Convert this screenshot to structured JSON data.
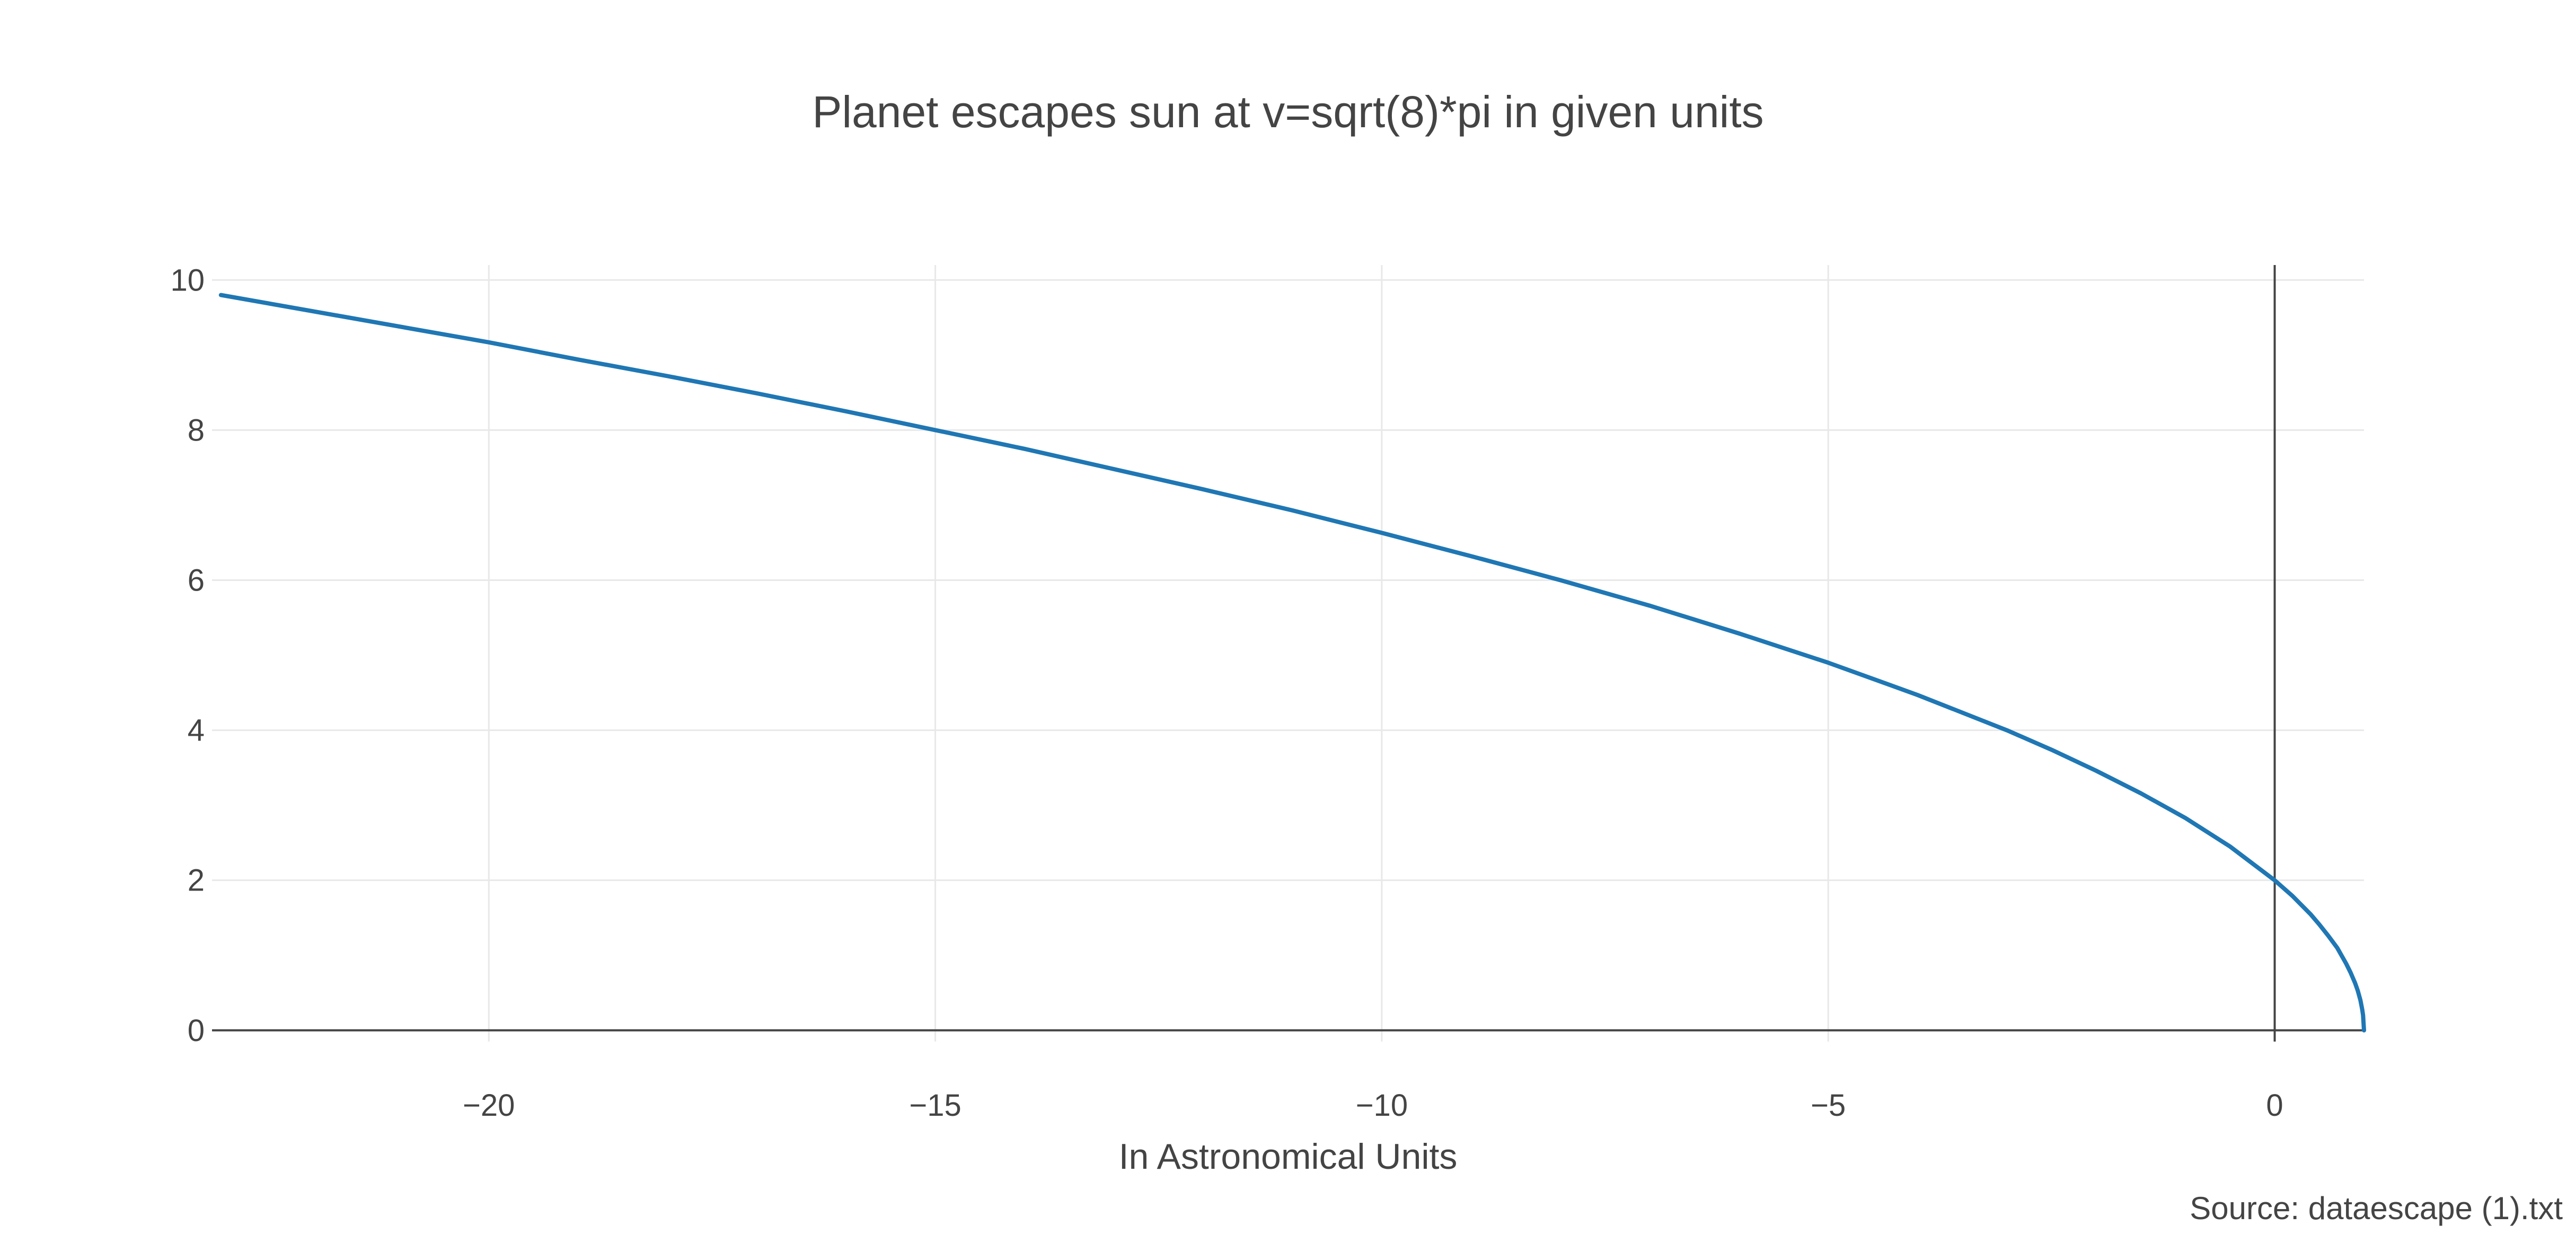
{
  "chart_data": {
    "type": "line",
    "title": "Planet escapes sun at v=sqrt(8)*pi in given units",
    "xlabel": "In Astronomical Units",
    "ylabel": "",
    "source": "Source: dataescape (1).txt",
    "xlim": [
      -23.1,
      1.0
    ],
    "ylim": [
      -0.15,
      10.2
    ],
    "x_ticks": [
      -20,
      -15,
      -10,
      -5,
      0
    ],
    "x_tick_labels": [
      "−20",
      "−15",
      "−10",
      "−5",
      "0"
    ],
    "y_ticks": [
      0,
      2,
      4,
      6,
      8,
      10
    ],
    "y_tick_labels": [
      "0",
      "2",
      "4",
      "6",
      "8",
      "10"
    ],
    "grid": true,
    "legend": "none",
    "series": [
      {
        "color": "#1f77b4",
        "x": [
          -23.0,
          -22.0,
          -21.0,
          -20.0,
          -19.0,
          -18.0,
          -17.0,
          -16.0,
          -15.0,
          -14.0,
          -13.0,
          -12.0,
          -11.0,
          -10.0,
          -9.0,
          -8.0,
          -7.0,
          -6.0,
          -5.0,
          -4.0,
          -3.0,
          -2.5,
          -2.0,
          -1.5,
          -1.0,
          -0.5,
          0.0,
          0.2,
          0.4,
          0.5,
          0.6,
          0.7,
          0.8,
          0.85,
          0.9,
          0.93,
          0.96,
          0.98,
          0.99,
          1.0
        ],
        "y": [
          9.8,
          9.59,
          9.38,
          9.17,
          8.94,
          8.72,
          8.49,
          8.25,
          8.0,
          7.75,
          7.48,
          7.21,
          6.93,
          6.63,
          6.32,
          6.0,
          5.66,
          5.29,
          4.9,
          4.47,
          4.0,
          3.74,
          3.46,
          3.16,
          2.83,
          2.45,
          2.0,
          1.79,
          1.55,
          1.41,
          1.26,
          1.1,
          0.89,
          0.77,
          0.63,
          0.53,
          0.4,
          0.28,
          0.2,
          0.0
        ]
      }
    ]
  }
}
